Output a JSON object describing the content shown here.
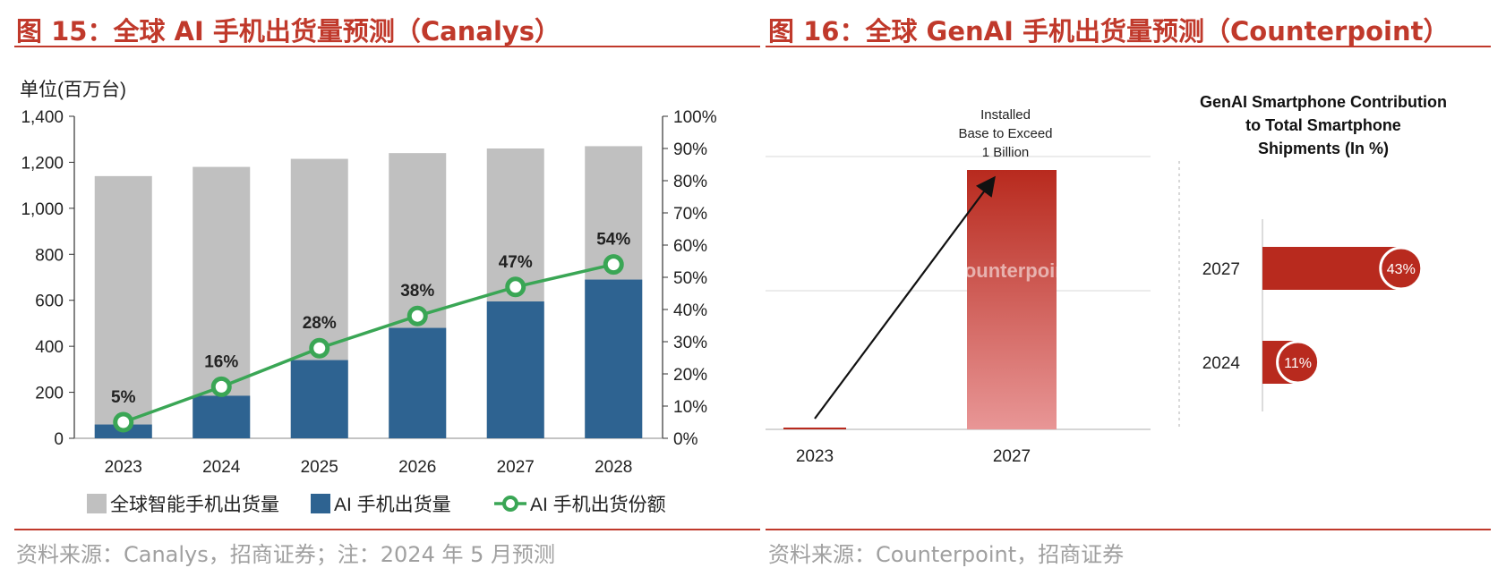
{
  "left": {
    "figure_title": "图 15：全球  AI 手机出货量预测（Canalys）",
    "source": "资料来源：Canalys，招商证券；注：2024 年 5 月预测"
  },
  "right": {
    "figure_title": "图 16：全球 GenAI 手机出货量预测（Counterpoint）",
    "source": "资料来源：Counterpoint，招商证券",
    "watermark": "Counterpoint"
  },
  "colors": {
    "accent": "#c0392b",
    "gray_bar": "#c0c0c0",
    "blue_bar": "#2e6391",
    "line_green": "#3aa655",
    "red_bar": "#b82a1e",
    "red_bar_light": "#e89696"
  },
  "chart_data": [
    {
      "type": "bar",
      "title": "",
      "unit_label": "单位(百万台)",
      "categories": [
        "2023",
        "2024",
        "2025",
        "2026",
        "2027",
        "2028"
      ],
      "ylim": [
        0,
        1400
      ],
      "yticks": [
        0,
        200,
        400,
        600,
        800,
        1000,
        1200,
        1400
      ],
      "ytick_labels": [
        "0",
        "200",
        "400",
        "600",
        "800",
        "1,000",
        "1,200",
        "1,400"
      ],
      "y2lim": [
        0,
        100
      ],
      "y2ticks": [
        0,
        10,
        20,
        30,
        40,
        50,
        60,
        70,
        80,
        90,
        100
      ],
      "y2tick_labels": [
        "0%",
        "10%",
        "20%",
        "30%",
        "40%",
        "50%",
        "60%",
        "70%",
        "80%",
        "90%",
        "100%"
      ],
      "series": [
        {
          "name": "全球智能手机出货量",
          "kind": "bar",
          "values": [
            1140,
            1180,
            1215,
            1240,
            1260,
            1270
          ]
        },
        {
          "name": "AI 手机出货量",
          "kind": "bar",
          "values": [
            60,
            185,
            340,
            480,
            595,
            690
          ]
        },
        {
          "name": "AI 手机出货份额",
          "kind": "line",
          "axis": "right",
          "values": [
            5,
            16,
            28,
            38,
            47,
            54
          ],
          "labels": [
            "5%",
            "16%",
            "28%",
            "38%",
            "47%",
            "54%"
          ]
        }
      ],
      "legend_position": "bottom",
      "grid": false
    },
    {
      "type": "bar",
      "title": "",
      "categories": [
        "2023",
        "2027"
      ],
      "values": [
        1,
        1000
      ],
      "annotation": [
        "Installed",
        "Base to Exceed",
        "1 Billion"
      ],
      "grid": true
    },
    {
      "type": "bar",
      "orientation": "horizontal",
      "title": [
        "GenAI Smartphone Contribution",
        "to Total Smartphone",
        "Shipments (In %)"
      ],
      "categories": [
        "2027",
        "2024"
      ],
      "values": [
        43,
        11
      ],
      "labels": [
        "43%",
        "11%"
      ],
      "xlim": [
        0,
        50
      ]
    }
  ]
}
